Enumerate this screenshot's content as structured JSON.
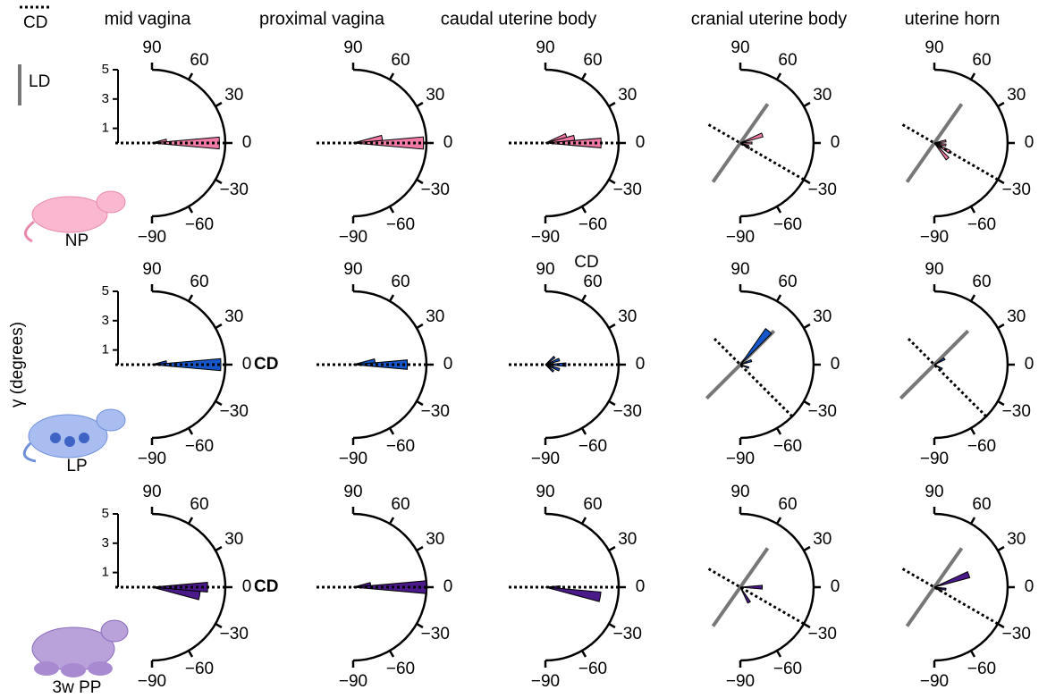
{
  "legend": {
    "cd": "CD",
    "ld": "LD"
  },
  "y_label": "γ (degrees)",
  "columns": [
    "mid vagina",
    "proximal vagina",
    "caudal uterine body",
    "cranial uterine body",
    "uterine horn"
  ],
  "rows": [
    "NP",
    "LP",
    "3w PP"
  ],
  "chart_data": [
    {
      "type": "rose",
      "color": "#f27aa6",
      "x": [
        10,
        0
      ],
      "values": [
        1.0,
        4.6
      ],
      "cd_angle": 0,
      "ld_angle": null,
      "rlim": [
        0,
        5
      ],
      "rticks": [
        1,
        3,
        5
      ],
      "theta_ticks": [
        90,
        60,
        30,
        0,
        {
          "value": -30,
          "label": "−30"
        },
        {
          "value": -60,
          "label": "−60"
        },
        {
          "value": -90,
          "label": "−90"
        }
      ]
    },
    {
      "type": "rose",
      "color": "#f27aa6",
      "x": [
        10,
        0
      ],
      "values": [
        2.0,
        4.8
      ],
      "cd_angle": 0,
      "ld_angle": null,
      "rlim": [
        0,
        5
      ],
      "theta_ticks": [
        90,
        60,
        30,
        0,
        {
          "value": -30,
          "label": "−30"
        },
        {
          "value": -60,
          "label": "−60"
        },
        {
          "value": -90,
          "label": "−90"
        }
      ]
    },
    {
      "type": "rose",
      "color": "#f27aa6",
      "x": [
        20,
        10,
        0
      ],
      "values": [
        1.5,
        2.0,
        3.8
      ],
      "cd_angle": 0,
      "ld_angle": null,
      "rlim": [
        0,
        5
      ],
      "theta_ticks": [
        90,
        60,
        30,
        0,
        {
          "value": -30,
          "label": "−30"
        },
        {
          "value": -60,
          "label": "−60"
        },
        {
          "value": -90,
          "label": "−90"
        }
      ]
    },
    {
      "type": "rose",
      "color": "#f27aa6",
      "x": [
        20,
        0,
        -20,
        -30
      ],
      "values": [
        1.6,
        0.8,
        0.6,
        0.7
      ],
      "cd_angle": -30,
      "ld_angle": 55,
      "rlim": [
        0,
        5
      ],
      "theta_ticks": [
        90,
        60,
        30,
        0,
        {
          "value": -30,
          "label": "−30"
        },
        {
          "value": -60,
          "label": "−60"
        },
        {
          "value": -90,
          "label": "−90"
        }
      ]
    },
    {
      "type": "rose",
      "color": "#f27aa6",
      "x": [
        10,
        -10,
        -30,
        -50
      ],
      "values": [
        0.8,
        0.8,
        1.2,
        1.4
      ],
      "cd_angle": -30,
      "ld_angle": 55,
      "rlim": [
        0,
        5
      ],
      "theta_ticks": [
        90,
        60,
        30,
        0,
        {
          "value": -30,
          "label": "−30"
        },
        {
          "value": -60,
          "label": "−60"
        },
        {
          "value": -90,
          "label": "−90"
        }
      ]
    },
    {
      "type": "rose",
      "color": "#1556c9",
      "x": [
        10,
        0
      ],
      "values": [
        1.0,
        4.7
      ],
      "cd_angle": 0,
      "ld_angle": null,
      "annotation": "CD",
      "rlim": [
        0,
        5
      ],
      "rticks": [
        1,
        3,
        5
      ],
      "theta_ticks": [
        90,
        60,
        30,
        0,
        {
          "value": -30,
          "label": "−30"
        },
        {
          "value": -60,
          "label": "−60"
        },
        {
          "value": -90,
          "label": "−90"
        }
      ]
    },
    {
      "type": "rose",
      "color": "#1556c9",
      "x": [
        10,
        0
      ],
      "values": [
        1.5,
        3.7
      ],
      "cd_angle": 0,
      "ld_angle": null,
      "rlim": [
        0,
        5
      ],
      "theta_ticks": [
        90,
        60,
        30,
        0,
        {
          "value": -30,
          "label": "−30"
        },
        {
          "value": -60,
          "label": "−60"
        },
        {
          "value": -90,
          "label": "−90"
        }
      ]
    },
    {
      "type": "rose",
      "color": "#1556c9",
      "x": [
        40,
        20,
        0,
        -20,
        -40
      ],
      "values": [
        0.8,
        1.0,
        1.4,
        1.0,
        0.7
      ],
      "cd_angle": 0,
      "ld_angle": null,
      "annotation": "CD",
      "rlim": [
        0,
        5
      ],
      "theta_ticks": [
        90,
        60,
        30,
        0,
        {
          "value": -30,
          "label": "−30"
        },
        {
          "value": -60,
          "label": "−60"
        },
        {
          "value": -90,
          "label": "−90"
        }
      ]
    },
    {
      "type": "rose",
      "color": "#1556c9",
      "x": [
        50,
        20,
        -20
      ],
      "values": [
        3.0,
        0.8,
        0.6
      ],
      "cd_angle": -45,
      "ld_angle": 45,
      "rlim": [
        0,
        5
      ],
      "theta_ticks": [
        90,
        60,
        30,
        0,
        {
          "value": -30,
          "label": "−30"
        },
        {
          "value": -60,
          "label": "−60"
        },
        {
          "value": -90,
          "label": "−90"
        }
      ]
    },
    {
      "type": "rose",
      "color": "#1556c9",
      "x": [
        30,
        -30
      ],
      "values": [
        0.8,
        0.6
      ],
      "cd_angle": -45,
      "ld_angle": 45,
      "rlim": [
        0,
        5
      ],
      "theta_ticks": [
        90,
        60,
        30,
        0,
        {
          "value": -30,
          "label": "−30"
        },
        {
          "value": -60,
          "label": "−60"
        },
        {
          "value": -90,
          "label": "−90"
        }
      ]
    },
    {
      "type": "rose",
      "color": "#4b1a8a",
      "x": [
        0,
        -10
      ],
      "values": [
        3.8,
        3.3
      ],
      "cd_angle": 0,
      "ld_angle": null,
      "annotation": "CD",
      "rlim": [
        0,
        5
      ],
      "rticks": [
        1,
        3,
        5
      ],
      "theta_ticks": [
        90,
        60,
        30,
        0,
        {
          "value": -30,
          "label": "−30"
        },
        {
          "value": -60,
          "label": "−60"
        },
        {
          "value": -90,
          "label": "−90"
        }
      ]
    },
    {
      "type": "rose",
      "color": "#4b1a8a",
      "x": [
        10,
        0
      ],
      "values": [
        1.2,
        5.0
      ],
      "cd_angle": 0,
      "ld_angle": null,
      "rlim": [
        0,
        5
      ],
      "theta_ticks": [
        90,
        60,
        30,
        0,
        {
          "value": -30,
          "label": "−30"
        },
        {
          "value": -60,
          "label": "−60"
        },
        {
          "value": -90,
          "label": "−90"
        }
      ]
    },
    {
      "type": "rose",
      "color": "#4b1a8a",
      "x": [
        0,
        -10
      ],
      "values": [
        1.0,
        3.8
      ],
      "cd_angle": 0,
      "ld_angle": null,
      "rlim": [
        0,
        5
      ],
      "theta_ticks": [
        90,
        60,
        30,
        0,
        {
          "value": -30,
          "label": "−30"
        },
        {
          "value": -60,
          "label": "−60"
        },
        {
          "value": -90,
          "label": "−90"
        }
      ]
    },
    {
      "type": "rose",
      "color": "#4b1a8a",
      "x": [
        0,
        -60
      ],
      "values": [
        1.5,
        1.2
      ],
      "cd_angle": -30,
      "ld_angle": 55,
      "rlim": [
        0,
        5
      ],
      "theta_ticks": [
        90,
        60,
        30,
        0,
        {
          "value": -30,
          "label": "−30"
        },
        {
          "value": -60,
          "label": "−60"
        },
        {
          "value": -90,
          "label": "−90"
        }
      ]
    },
    {
      "type": "rose",
      "color": "#4b1a8a",
      "x": [
        20,
        -10,
        -30
      ],
      "values": [
        2.5,
        0.8,
        0.6
      ],
      "cd_angle": -30,
      "ld_angle": 55,
      "rlim": [
        0,
        5
      ],
      "theta_ticks": [
        90,
        60,
        30,
        0,
        {
          "value": -30,
          "label": "−30"
        },
        {
          "value": -60,
          "label": "−60"
        },
        {
          "value": -90,
          "label": "−90"
        }
      ]
    }
  ]
}
